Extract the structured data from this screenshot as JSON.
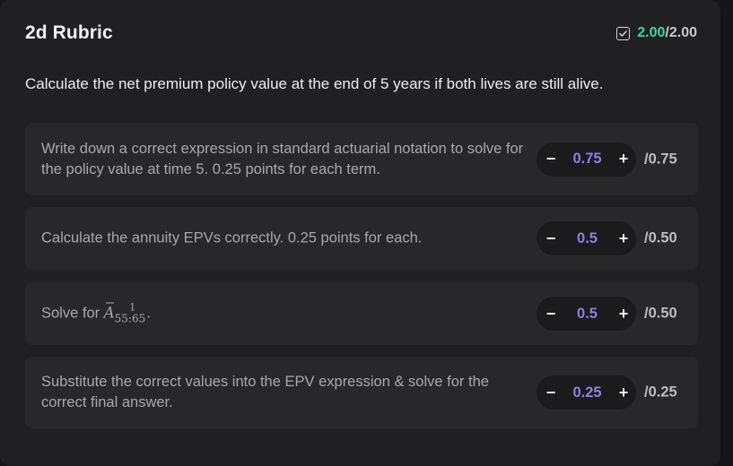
{
  "rubric": {
    "title": "2d Rubric",
    "score": {
      "earned": "2.00",
      "separator": "/",
      "total": "2.00",
      "icon": "checkbox-check-icon"
    },
    "question": "Calculate the net premium policy value at the end of 5 years if both lives are still alive.",
    "criteria": [
      {
        "text": "Write down a correct expression in standard actuarial notation to solve for the policy value at time 5. 0.25 points for each term.",
        "value": "0.75",
        "max": "/0.75"
      },
      {
        "text": "Calculate the annuity EPVs correctly. 0.25 points for each.",
        "value": "0.5",
        "max": "/0.50"
      },
      {
        "text_prefix": "Solve for ",
        "math_symbol": "A",
        "math_subscript": "55:65",
        "math_superscript": "1",
        "text_suffix": ".",
        "value": "0.5",
        "max": "/0.50"
      },
      {
        "text": "Substitute the correct values into the EPV expression & solve for the correct final answer.",
        "value": "0.25",
        "max": "/0.25"
      }
    ],
    "stepper": {
      "minus_label": "−",
      "plus_label": "+"
    }
  }
}
